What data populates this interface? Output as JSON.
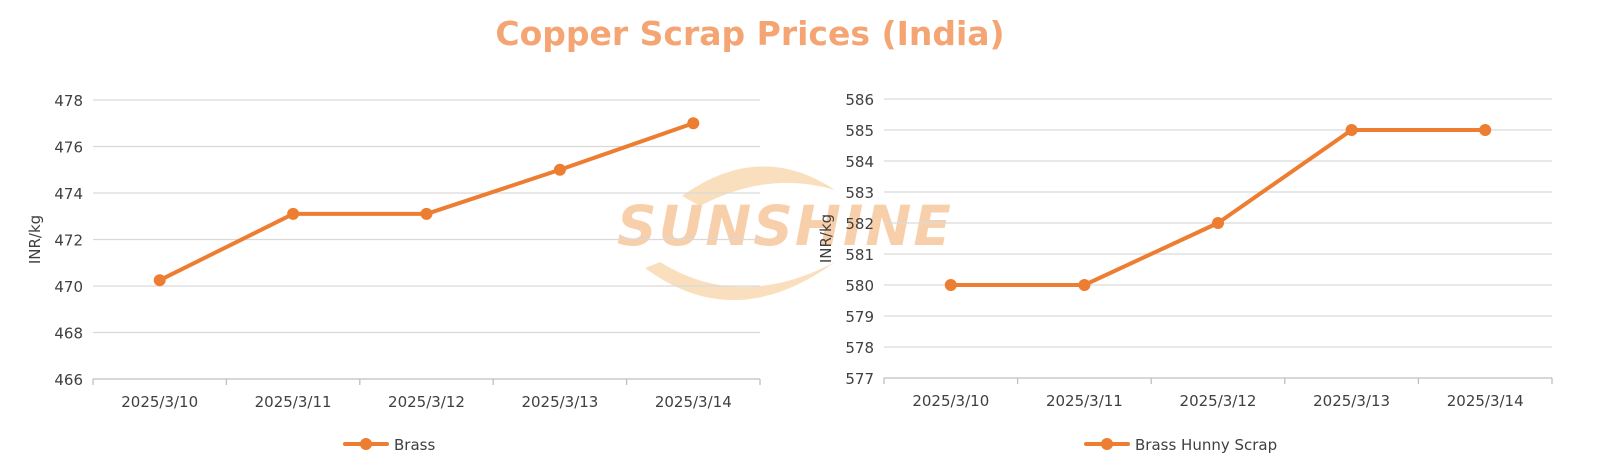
{
  "title": "Copper Scrap Prices (India)",
  "colors": {
    "title": "#f4a573",
    "series": "#ed7d31",
    "grid": "#d9d9d9",
    "axis_text": "#404040",
    "watermark": "#f6c08f"
  },
  "watermark": {
    "text": "SUNSHINE"
  },
  "chart_data": [
    {
      "type": "line",
      "categories": [
        "2025/3/10",
        "2025/3/11",
        "2025/3/12",
        "2025/3/13",
        "2025/3/14"
      ],
      "ylabel": "INR/kg",
      "ylim": [
        466,
        478
      ],
      "yticks": [
        "466",
        "468",
        "470",
        "472",
        "474",
        "476",
        "478"
      ],
      "grid": true,
      "legend_position": "bottom",
      "series": [
        {
          "name": "Brass",
          "values": [
            470.25,
            473.1,
            473.1,
            475,
            477
          ]
        }
      ]
    },
    {
      "type": "line",
      "categories": [
        "2025/3/10",
        "2025/3/11",
        "2025/3/12",
        "2025/3/13",
        "2025/3/14"
      ],
      "ylabel": "INR/kg",
      "ylim": [
        577,
        586
      ],
      "yticks": [
        "577",
        "578",
        "579",
        "580",
        "581",
        "582",
        "583",
        "584",
        "585",
        "586"
      ],
      "grid": true,
      "legend_position": "bottom",
      "series": [
        {
          "name": "Brass Hunny Scrap",
          "values": [
            580,
            580,
            582,
            585,
            585
          ]
        }
      ]
    }
  ]
}
